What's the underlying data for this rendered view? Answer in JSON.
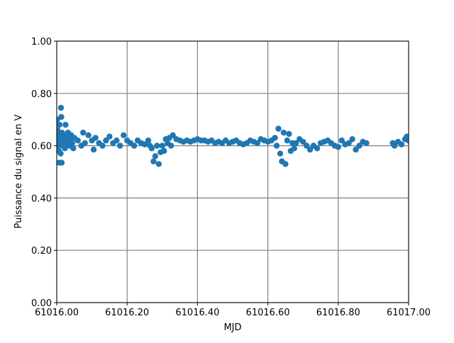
{
  "chart_data": {
    "type": "scatter",
    "x_label": "MJD",
    "y_label": "Puissance du signal en V",
    "color": "#1f77b4",
    "grid": true,
    "xlim": [
      61016.0,
      61017.0
    ],
    "xticks": [
      {
        "value": 61016.0,
        "label": "61016.00"
      },
      {
        "value": 61016.2,
        "label": "61016.20"
      },
      {
        "value": 61016.4,
        "label": "61016.40"
      },
      {
        "value": 61016.6,
        "label": "61016.60"
      },
      {
        "value": 61016.8,
        "label": "61016.80"
      },
      {
        "value": 61017.0,
        "label": "61017.00"
      }
    ],
    "ylim": [
      0,
      1
    ],
    "yticks": [
      {
        "value": 0,
        "label": "0.00"
      },
      {
        "value": 0.2,
        "label": "0.20"
      },
      {
        "value": 0.4,
        "label": "0.40"
      },
      {
        "value": 0.6,
        "label": "0.60"
      },
      {
        "value": 0.8,
        "label": "0.80"
      },
      {
        "value": 1,
        "label": "1.00"
      }
    ],
    "x": [
      61016.001,
      61016.002,
      61016.003,
      61016.004,
      61016.005,
      61016.006,
      61016.007,
      61016.008,
      61016.009,
      61016.01,
      61016.011,
      61016.012,
      61016.013,
      61016.014,
      61016.015,
      61016.017,
      61016.019,
      61016.021,
      61016.023,
      61016.025,
      61016.027,
      61016.029,
      61016.032,
      61016.035,
      61016.038,
      61016.041,
      61016.044,
      61016.047,
      61016.05,
      61016.06,
      61016.07,
      61016.075,
      61016.08,
      61016.09,
      61016.1,
      61016.105,
      61016.11,
      61016.12,
      61016.13,
      61016.14,
      61016.15,
      61016.16,
      61016.17,
      61016.18,
      61016.19,
      61016.2,
      61016.21,
      61016.22,
      61016.23,
      61016.24,
      61016.25,
      61016.26,
      61016.265,
      61016.27,
      61016.275,
      61016.28,
      61016.285,
      61016.29,
      61016.295,
      61016.3,
      61016.305,
      61016.31,
      61016.315,
      61016.32,
      61016.325,
      61016.33,
      61016.34,
      61016.35,
      61016.36,
      61016.37,
      61016.38,
      61016.39,
      61016.4,
      61016.41,
      61016.42,
      61016.43,
      61016.44,
      61016.45,
      61016.46,
      61016.47,
      61016.48,
      61016.49,
      61016.5,
      61016.51,
      61016.52,
      61016.53,
      61016.54,
      61016.55,
      61016.56,
      61016.57,
      61016.58,
      61016.59,
      61016.6,
      61016.61,
      61016.62,
      61016.625,
      61016.63,
      61016.635,
      61016.64,
      61016.645,
      61016.65,
      61016.655,
      61016.66,
      61016.665,
      61016.67,
      61016.675,
      61016.68,
      61016.69,
      61016.7,
      61016.71,
      61016.72,
      61016.73,
      61016.74,
      61016.75,
      61016.76,
      61016.77,
      61016.78,
      61016.79,
      61016.8,
      61016.81,
      61016.82,
      61016.83,
      61016.84,
      61016.85,
      61016.86,
      61016.87,
      61016.88,
      61016.955,
      61016.96,
      61016.97,
      61016.98,
      61016.99,
      61016.995,
      61017.0
    ],
    "values": [
      0.7,
      0.66,
      0.62,
      0.6,
      0.64,
      0.58,
      0.535,
      0.68,
      0.61,
      0.63,
      0.57,
      0.745,
      0.71,
      0.535,
      0.65,
      0.6,
      0.64,
      0.62,
      0.59,
      0.68,
      0.63,
      0.61,
      0.65,
      0.6,
      0.62,
      0.64,
      0.61,
      0.59,
      0.63,
      0.62,
      0.6,
      0.65,
      0.61,
      0.64,
      0.62,
      0.585,
      0.63,
      0.61,
      0.6,
      0.62,
      0.635,
      0.61,
      0.62,
      0.6,
      0.64,
      0.62,
      0.61,
      0.6,
      0.62,
      0.61,
      0.605,
      0.62,
      0.6,
      0.59,
      0.54,
      0.56,
      0.6,
      0.53,
      0.575,
      0.6,
      0.58,
      0.625,
      0.61,
      0.63,
      0.6,
      0.64,
      0.625,
      0.62,
      0.615,
      0.62,
      0.615,
      0.62,
      0.625,
      0.62,
      0.62,
      0.615,
      0.62,
      0.61,
      0.615,
      0.61,
      0.62,
      0.61,
      0.615,
      0.62,
      0.61,
      0.605,
      0.61,
      0.62,
      0.615,
      0.61,
      0.625,
      0.62,
      0.615,
      0.62,
      0.63,
      0.6,
      0.665,
      0.57,
      0.54,
      0.65,
      0.53,
      0.62,
      0.645,
      0.58,
      0.61,
      0.59,
      0.61,
      0.625,
      0.615,
      0.6,
      0.585,
      0.6,
      0.59,
      0.61,
      0.615,
      0.62,
      0.61,
      0.6,
      0.595,
      0.62,
      0.605,
      0.61,
      0.625,
      0.585,
      0.6,
      0.615,
      0.61,
      0.61,
      0.6,
      0.615,
      0.605,
      0.625,
      0.635,
      0.62
    ]
  }
}
